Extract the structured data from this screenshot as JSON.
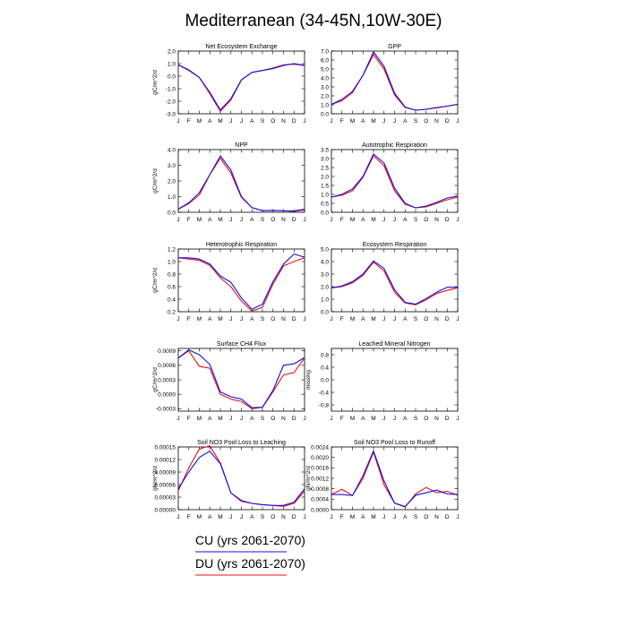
{
  "title": "Mediterranean (34-45N,10W-30E)",
  "months": [
    "J",
    "F",
    "M",
    "A",
    "M",
    "J",
    "J",
    "A",
    "S",
    "O",
    "N",
    "D",
    "J"
  ],
  "colors": {
    "CU": "#1010e0",
    "DU": "#ee1010"
  },
  "legend": [
    {
      "key": "CU",
      "label": "CU (yrs 2061-2070)"
    },
    {
      "key": "DU",
      "label": "DU (yrs 2061-2070)"
    }
  ],
  "chart_data": [
    {
      "type": "line",
      "title": "Net Ecosystem Exchange",
      "ylabel": "gC/m^2/d",
      "ylim": [
        -3.0,
        2.0
      ],
      "ticks": [
        "2.0",
        "1.0",
        "0.0",
        "-1.0",
        "-2.0",
        "-3.0"
      ],
      "series": [
        {
          "key": "CU",
          "values": [
            0.9,
            0.5,
            -0.1,
            -1.3,
            -2.7,
            -1.8,
            -0.3,
            0.3,
            0.45,
            0.6,
            0.85,
            1.0,
            0.85
          ]
        },
        {
          "key": "DU",
          "values": [
            0.9,
            0.45,
            -0.1,
            -1.4,
            -2.8,
            -1.9,
            -0.3,
            0.3,
            0.45,
            0.65,
            0.9,
            0.95,
            0.85
          ]
        }
      ]
    },
    {
      "type": "line",
      "title": "GPP",
      "ylabel": "",
      "ylim": [
        0.0,
        7.0
      ],
      "ticks": [
        "7.0",
        "6.0",
        "5.0",
        "4.0",
        "3.0",
        "2.0",
        "1.0",
        "0.0"
      ],
      "series": [
        {
          "key": "CU",
          "values": [
            1.05,
            1.6,
            2.5,
            4.3,
            6.9,
            5.3,
            2.3,
            0.75,
            0.4,
            0.5,
            0.7,
            0.85,
            1.05
          ]
        },
        {
          "key": "DU",
          "values": [
            1.05,
            1.45,
            2.35,
            4.3,
            6.6,
            5.0,
            2.1,
            0.7,
            0.4,
            0.5,
            0.65,
            0.85,
            1.05
          ]
        }
      ]
    },
    {
      "type": "line",
      "title": "NPP",
      "ylabel": "gC/m^2/d",
      "ylim": [
        0.0,
        4.0
      ],
      "ticks": [
        "4.0",
        "3.0",
        "2.0",
        "1.0",
        "0.0"
      ],
      "series": [
        {
          "key": "CU",
          "values": [
            0.2,
            0.6,
            1.25,
            2.4,
            3.6,
            2.7,
            1.0,
            0.3,
            0.1,
            0.12,
            0.1,
            0.08,
            0.2
          ]
        },
        {
          "key": "DU",
          "values": [
            0.2,
            0.55,
            1.1,
            2.4,
            3.45,
            2.5,
            0.95,
            0.3,
            0.1,
            0.12,
            0.1,
            0.05,
            0.15
          ]
        }
      ]
    },
    {
      "type": "line",
      "title": "Autotrophic Respiration",
      "ylabel": "",
      "ylim": [
        0.0,
        3.5
      ],
      "ticks": [
        "3.5",
        "3.0",
        "2.5",
        "2.0",
        "1.5",
        "1.0",
        "0.5",
        "0.0"
      ],
      "series": [
        {
          "key": "CU",
          "values": [
            0.85,
            1.0,
            1.3,
            2.0,
            3.25,
            2.75,
            1.35,
            0.5,
            0.25,
            0.35,
            0.55,
            0.8,
            0.9
          ]
        },
        {
          "key": "DU",
          "values": [
            0.85,
            0.95,
            1.2,
            1.95,
            3.15,
            2.6,
            1.2,
            0.45,
            0.25,
            0.3,
            0.5,
            0.7,
            0.85
          ]
        }
      ]
    },
    {
      "type": "line",
      "title": "Heterotrophic Respiration",
      "ylabel": "gC/m^2/d",
      "ylim": [
        0.2,
        1.2
      ],
      "ticks": [
        "1.2",
        "1.0",
        "0.8",
        "0.6",
        "0.4",
        "0.2"
      ],
      "series": [
        {
          "key": "CU",
          "values": [
            1.06,
            1.06,
            1.04,
            0.96,
            0.77,
            0.67,
            0.42,
            0.24,
            0.32,
            0.68,
            0.96,
            1.12,
            1.07
          ]
        },
        {
          "key": "DU",
          "values": [
            1.06,
            1.04,
            1.02,
            0.94,
            0.74,
            0.6,
            0.37,
            0.21,
            0.27,
            0.64,
            0.93,
            1.0,
            1.06
          ]
        }
      ]
    },
    {
      "type": "line",
      "title": "Ecosystem Respiration",
      "ylabel": "",
      "ylim": [
        0.0,
        5.0
      ],
      "ticks": [
        "5.0",
        "4.0",
        "3.0",
        "2.0",
        "1.0",
        "0.0"
      ],
      "series": [
        {
          "key": "CU",
          "values": [
            1.9,
            2.05,
            2.4,
            3.0,
            4.05,
            3.45,
            1.75,
            0.75,
            0.6,
            1.05,
            1.55,
            1.95,
            1.95
          ]
        },
        {
          "key": "DU",
          "values": [
            1.9,
            2.0,
            2.3,
            2.9,
            3.95,
            3.25,
            1.55,
            0.7,
            0.55,
            0.95,
            1.45,
            1.7,
            1.9
          ]
        }
      ]
    },
    {
      "type": "line",
      "title": "Surface CH4 Flux",
      "ylabel": "gC/m^2/d",
      "ylim": [
        -0.00035,
        0.00095
      ],
      "ticks": [
        "0.0009",
        "0.0006",
        "0.0003",
        "0.0000",
        "-0.0003"
      ],
      "series": [
        {
          "key": "CU",
          "values": [
            0.00075,
            0.00092,
            0.00082,
            0.00062,
            5e-05,
            -5e-05,
            -0.0001,
            -0.00028,
            -0.00027,
            8e-05,
            0.0006,
            0.00063,
            0.00076
          ]
        },
        {
          "key": "DU",
          "values": [
            0.00075,
            0.0009,
            0.00058,
            0.00054,
            0.0,
            -0.0001,
            -0.00015,
            -0.0003,
            -0.00027,
            5e-05,
            0.0004,
            0.00045,
            0.00075
          ]
        }
      ]
    },
    {
      "type": "line",
      "title": "Leached Mineral Nitrogen",
      "ylabel": "missing",
      "ylim": [
        -1.0,
        1.0
      ],
      "ticks": [
        "0.8",
        "0.4",
        "0.0",
        "-0.4",
        "-0.8"
      ],
      "series": []
    },
    {
      "type": "line",
      "title": "Soil NO3 Pool Loss to Leaching",
      "ylabel": "gN/m^2/d",
      "ylim": [
        0.0,
        0.00015
      ],
      "ticks": [
        "0.00015",
        "0.00012",
        "0.00009",
        "0.00006",
        "0.00003",
        "0.00000"
      ],
      "series": [
        {
          "key": "CU",
          "values": [
            5e-05,
            9e-05,
            0.000125,
            0.00014,
            0.00011,
            4e-05,
            2.2e-05,
            1.5e-05,
            1.2e-05,
            1e-05,
            1e-05,
            1.8e-05,
            5e-05
          ]
        },
        {
          "key": "DU",
          "values": [
            4.5e-05,
            0.0001,
            0.000145,
            0.000153,
            0.000112,
            4e-05,
            2e-05,
            1.5e-05,
            1.2e-05,
            1e-05,
            8e-06,
            1.5e-05,
            4.5e-05
          ]
        }
      ]
    },
    {
      "type": "line",
      "title": "Soil NO3 Pool Loss to Runoff",
      "ylabel": "gN/m^2/d",
      "ylim": [
        0.0,
        0.0024
      ],
      "ticks": [
        "0.0024",
        "0.0020",
        "0.0016",
        "0.0012",
        "0.0008",
        "0.0004",
        "0.0000"
      ],
      "series": [
        {
          "key": "CU",
          "values": [
            0.00058,
            0.00058,
            0.00054,
            0.0013,
            0.00225,
            0.0011,
            0.00025,
            0.00012,
            0.00055,
            0.00065,
            0.00075,
            0.0006,
            0.00058
          ]
        },
        {
          "key": "DU",
          "values": [
            0.00058,
            0.00078,
            0.00054,
            0.0012,
            0.0022,
            0.00095,
            0.00025,
            0.0001,
            0.0006,
            0.00085,
            0.00065,
            0.0007,
            0.00055
          ]
        }
      ]
    }
  ]
}
